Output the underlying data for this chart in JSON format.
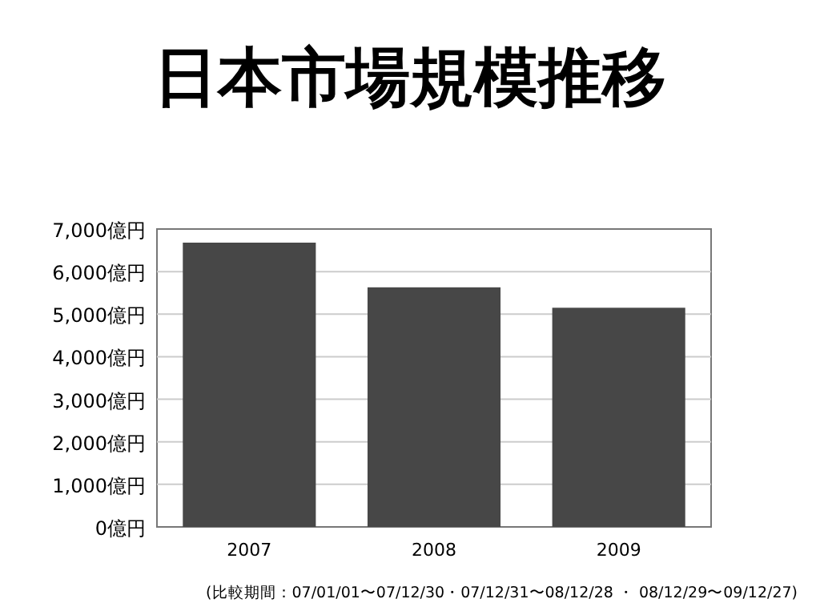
{
  "chart_data": {
    "type": "bar",
    "title": "日本市場規模推移",
    "categories": [
      "2007",
      "2008",
      "2009"
    ],
    "values": [
      6680,
      5630,
      5150
    ],
    "color": "#474747",
    "ylim": [
      0,
      7000
    ],
    "yticks": [
      {
        "value": 0,
        "label": "0億円"
      },
      {
        "value": 1000,
        "label": "1,000億円"
      },
      {
        "value": 2000,
        "label": "2,000億円"
      },
      {
        "value": 3000,
        "label": "3,000億円"
      },
      {
        "value": 4000,
        "label": "4,000億円"
      },
      {
        "value": 5000,
        "label": "5,000億円"
      },
      {
        "value": 6000,
        "label": "6,000億円"
      },
      {
        "value": 7000,
        "label": "7,000億円"
      }
    ],
    "grid": "y",
    "annotations": [
      "(比較期間：07/01/01〜07/12/30・07/12/31〜08/12/28 ・ 08/12/29〜09/12/27)"
    ]
  }
}
